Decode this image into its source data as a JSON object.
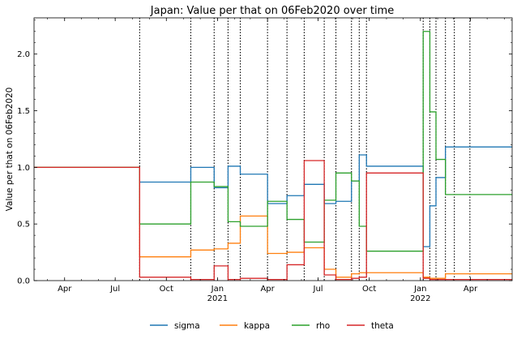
{
  "chart_data": {
    "type": "line",
    "title": "Japan: Value per that on 06Feb2020 over time",
    "xlabel": "",
    "ylabel": "Value per that on 06Feb2020",
    "xlim": [
      "2020-02-06",
      "2022-06-15"
    ],
    "ylim": [
      0,
      2.32
    ],
    "yticks": [
      {
        "value": 0.0,
        "label": "0.0"
      },
      {
        "value": 0.5,
        "label": "0.5"
      },
      {
        "value": 1.0,
        "label": "1.0"
      },
      {
        "value": 1.5,
        "label": "1.5"
      },
      {
        "value": 2.0,
        "label": "2.0"
      }
    ],
    "xticks": [
      {
        "date": "2020-04-01",
        "label": "Apr"
      },
      {
        "date": "2020-07-01",
        "label": "Jul"
      },
      {
        "date": "2020-10-01",
        "label": "Oct"
      },
      {
        "date": "2021-01-01",
        "label": "Jan",
        "sublabel": "2021"
      },
      {
        "date": "2021-04-01",
        "label": "Apr"
      },
      {
        "date": "2021-07-01",
        "label": "Jul"
      },
      {
        "date": "2021-10-01",
        "label": "Oct"
      },
      {
        "date": "2022-01-01",
        "label": "Jan",
        "sublabel": "2022"
      },
      {
        "date": "2022-04-01",
        "label": "Apr"
      }
    ],
    "grid": false,
    "legend_position": "bottom",
    "vlines": [
      "2020-08-14",
      "2020-11-14",
      "2020-12-26",
      "2021-01-20",
      "2021-02-11",
      "2021-04-01",
      "2021-05-06",
      "2021-06-06",
      "2021-07-12",
      "2021-08-02",
      "2021-08-30",
      "2021-09-13",
      "2021-09-26",
      "2022-01-06",
      "2022-01-18",
      "2022-01-29",
      "2022-02-15",
      "2022-03-03",
      "2022-03-31"
    ],
    "series": [
      {
        "name": "sigma",
        "color": "#1f77b4",
        "points": [
          [
            "2020-02-06",
            1.0
          ],
          [
            "2020-08-14",
            0.87
          ],
          [
            "2020-11-14",
            1.0
          ],
          [
            "2020-12-26",
            0.82
          ],
          [
            "2021-01-20",
            1.01
          ],
          [
            "2021-02-11",
            0.94
          ],
          [
            "2021-04-01",
            0.68
          ],
          [
            "2021-05-06",
            0.75
          ],
          [
            "2021-06-06",
            0.85
          ],
          [
            "2021-07-12",
            0.68
          ],
          [
            "2021-08-02",
            0.7
          ],
          [
            "2021-08-30",
            0.88
          ],
          [
            "2021-09-13",
            1.11
          ],
          [
            "2021-09-26",
            1.01
          ],
          [
            "2022-01-06",
            0.3
          ],
          [
            "2022-01-18",
            0.66
          ],
          [
            "2022-01-29",
            0.91
          ],
          [
            "2022-02-15",
            1.18
          ],
          [
            "2022-06-15",
            1.18
          ]
        ]
      },
      {
        "name": "kappa",
        "color": "#ff7f0e",
        "points": [
          [
            "2020-02-06",
            1.0
          ],
          [
            "2020-08-14",
            0.21
          ],
          [
            "2020-11-14",
            0.27
          ],
          [
            "2020-12-26",
            0.28
          ],
          [
            "2021-01-20",
            0.33
          ],
          [
            "2021-02-11",
            0.57
          ],
          [
            "2021-04-01",
            0.24
          ],
          [
            "2021-05-06",
            0.25
          ],
          [
            "2021-06-06",
            0.29
          ],
          [
            "2021-07-12",
            0.1
          ],
          [
            "2021-08-02",
            0.03
          ],
          [
            "2021-08-30",
            0.06
          ],
          [
            "2021-09-13",
            0.07
          ],
          [
            "2021-09-26",
            0.07
          ],
          [
            "2022-01-06",
            0.03
          ],
          [
            "2022-01-18",
            0.02
          ],
          [
            "2022-01-29",
            0.02
          ],
          [
            "2022-02-15",
            0.06
          ],
          [
            "2022-06-15",
            0.06
          ]
        ]
      },
      {
        "name": "rho",
        "color": "#2ca02c",
        "points": [
          [
            "2020-02-06",
            1.0
          ],
          [
            "2020-08-14",
            0.5
          ],
          [
            "2020-11-14",
            0.87
          ],
          [
            "2020-12-26",
            0.83
          ],
          [
            "2021-01-20",
            0.52
          ],
          [
            "2021-02-11",
            0.48
          ],
          [
            "2021-04-01",
            0.7
          ],
          [
            "2021-05-06",
            0.54
          ],
          [
            "2021-06-06",
            0.34
          ],
          [
            "2021-07-12",
            0.71
          ],
          [
            "2021-08-02",
            0.95
          ],
          [
            "2021-08-30",
            0.88
          ],
          [
            "2021-09-13",
            0.48
          ],
          [
            "2021-09-26",
            0.26
          ],
          [
            "2022-01-06",
            2.2
          ],
          [
            "2022-01-18",
            1.49
          ],
          [
            "2022-01-29",
            1.07
          ],
          [
            "2022-02-15",
            0.76
          ],
          [
            "2022-06-15",
            0.76
          ]
        ]
      },
      {
        "name": "theta",
        "color": "#d62728",
        "points": [
          [
            "2020-02-06",
            1.0
          ],
          [
            "2020-08-14",
            0.03
          ],
          [
            "2020-11-14",
            0.01
          ],
          [
            "2020-12-26",
            0.13
          ],
          [
            "2021-01-20",
            0.01
          ],
          [
            "2021-02-11",
            0.02
          ],
          [
            "2021-04-01",
            0.01
          ],
          [
            "2021-05-06",
            0.14
          ],
          [
            "2021-06-06",
            1.06
          ],
          [
            "2021-07-12",
            0.05
          ],
          [
            "2021-08-02",
            0.01
          ],
          [
            "2021-08-30",
            0.02
          ],
          [
            "2021-09-13",
            0.03
          ],
          [
            "2021-09-26",
            0.95
          ],
          [
            "2022-01-06",
            0.02
          ],
          [
            "2022-01-18",
            0.01
          ],
          [
            "2022-01-29",
            0.01
          ],
          [
            "2022-02-15",
            0.01
          ],
          [
            "2022-06-15",
            0.01
          ]
        ]
      }
    ]
  }
}
